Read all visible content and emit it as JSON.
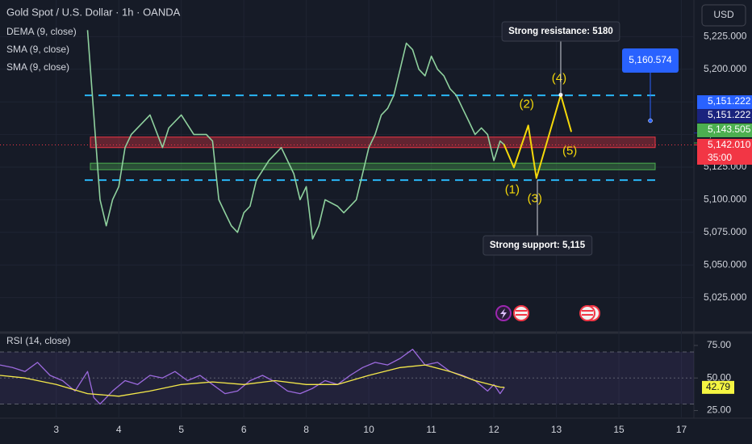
{
  "chart_data": [
    {
      "type": "line",
      "title": "Gold Spot / U.S. Dollar · 1h · OANDA",
      "currency": "USD",
      "indicators": [
        "DEMA (9, close)",
        "SMA (9, close)",
        "SMA (9, close)"
      ],
      "x": [
        1.5,
        1.7,
        1.8,
        1.9,
        2.0,
        2.1,
        2.2,
        2.4,
        2.5,
        2.7,
        2.8,
        3.0,
        3.2,
        3.4,
        3.5,
        3.6,
        3.7,
        3.8,
        3.9,
        4.0,
        4.1,
        4.2,
        4.4,
        4.6,
        4.8,
        4.9,
        5.0,
        5.1,
        5.2,
        5.3,
        5.5,
        5.6,
        5.8,
        5.9,
        6.0,
        6.1,
        6.2,
        6.3,
        6.4,
        6.5,
        6.6,
        6.7,
        6.8,
        6.9,
        7.0,
        7.1,
        7.2,
        7.3,
        7.4,
        7.5,
        7.6,
        7.7,
        7.8,
        7.9,
        8.0,
        8.1,
        8.17
      ],
      "series": [
        {
          "color": "#8fd19e",
          "values": [
            5230,
            5100,
            5080,
            5100,
            5110,
            5140,
            5150,
            5160,
            5165,
            5140,
            5155,
            5165,
            5150,
            5150,
            5145,
            5100,
            5090,
            5080,
            5075,
            5090,
            5095,
            5115,
            5130,
            5140,
            5120,
            5100,
            5110,
            5070,
            5080,
            5100,
            5095,
            5090,
            5100,
            5120,
            5140,
            5150,
            5165,
            5170,
            5180,
            5200,
            5220,
            5215,
            5200,
            5195,
            5210,
            5200,
            5195,
            5185,
            5180,
            5170,
            5160,
            5150,
            5155,
            5150,
            5130,
            5145,
            5142
          ]
        }
      ],
      "xlim": [
        0.1,
        11.2
      ],
      "xticks": [
        {
          "value": 1,
          "label": "3"
        },
        {
          "value": 2,
          "label": "4"
        },
        {
          "value": 3,
          "label": "5"
        },
        {
          "value": 4,
          "label": "6"
        },
        {
          "value": 5,
          "label": "8"
        },
        {
          "value": 6,
          "label": "10"
        },
        {
          "value": 7,
          "label": "11"
        },
        {
          "value": 8,
          "label": "12"
        },
        {
          "value": 9,
          "label": "13"
        },
        {
          "value": 10,
          "label": "15"
        },
        {
          "value": 11,
          "label": "17"
        }
      ],
      "ylim": [
        5000,
        5250
      ],
      "yticks": [
        {
          "value": 5025,
          "label": "5,025.000"
        },
        {
          "value": 5050,
          "label": "5,050.000"
        },
        {
          "value": 5075,
          "label": "5,075.000"
        },
        {
          "value": 5100,
          "label": "5,100.000"
        },
        {
          "value": 5125,
          "label": "5,125.000"
        },
        {
          "value": 5150,
          "label": "5,150.000"
        },
        {
          "value": 5175,
          "label": "5,175.000"
        },
        {
          "value": 5200,
          "label": "5,200.000"
        },
        {
          "value": 5225,
          "label": "5,225.000"
        }
      ],
      "resistance": {
        "value": 5180,
        "label": "Strong resistance: 5180"
      },
      "support": {
        "value": 5115,
        "label": "Strong support: 5,115"
      },
      "red_zone": [
        5140,
        5148
      ],
      "green_zone": [
        5123,
        5128
      ],
      "target": {
        "value": 5160.574,
        "label": "5,160.574"
      },
      "last_price": 5142.01,
      "wave": {
        "x": [
          8.16,
          8.32,
          8.55,
          8.68,
          9.07,
          9.24
        ],
        "values": [
          5142.6,
          5124.7,
          5156.9,
          5116.6,
          5180.4,
          5152
        ],
        "labels": [
          "(1)",
          "(2)",
          "(3)",
          "(4)",
          "(5)"
        ],
        "color": "#f5d90a"
      },
      "price_labels": [
        {
          "value": 5151.222,
          "label": "5,151.222",
          "color": "#2962ff"
        },
        {
          "value": 5151.222,
          "label": "5,151.222",
          "color": "#1a237e"
        },
        {
          "value": 5143.505,
          "label": "5,143.505",
          "color": "#4caf50"
        },
        {
          "value": 5142.01,
          "label": "5,142.010",
          "color": "#f23645"
        }
      ],
      "countdown": "35:00"
    },
    {
      "type": "line",
      "title": "RSI (14, close)",
      "series": [
        {
          "color": "#9c6ade",
          "x": [
            0.1,
            0.3,
            0.5,
            0.7,
            0.9,
            1.1,
            1.3,
            1.5,
            1.6,
            1.7,
            1.9,
            2.1,
            2.3,
            2.5,
            2.7,
            2.9,
            3.1,
            3.3,
            3.5,
            3.7,
            3.9,
            4.1,
            4.3,
            4.5,
            4.7,
            4.9,
            5.1,
            5.3,
            5.5,
            5.7,
            5.9,
            6.1,
            6.3,
            6.5,
            6.7,
            6.9,
            7.1,
            7.3,
            7.5,
            7.7,
            7.9,
            8.0,
            8.1,
            8.17
          ],
          "values": [
            60,
            58,
            55,
            62,
            52,
            48,
            40,
            55,
            35,
            30,
            40,
            48,
            45,
            52,
            50,
            55,
            48,
            52,
            45,
            38,
            40,
            48,
            52,
            47,
            40,
            38,
            42,
            48,
            45,
            52,
            58,
            62,
            60,
            65,
            72,
            60,
            62,
            55,
            52,
            48,
            40,
            45,
            38,
            42.79
          ]
        },
        {
          "color": "#f5e94a",
          "x": [
            0.1,
            0.5,
            1.0,
            1.5,
            2.0,
            2.5,
            3.0,
            3.5,
            4.0,
            4.5,
            5.0,
            5.5,
            6.0,
            6.5,
            6.9,
            7.3,
            7.7,
            8.1,
            8.17
          ],
          "values": [
            52,
            50,
            45,
            38,
            36,
            40,
            45,
            47,
            45,
            48,
            45,
            45,
            52,
            58,
            60,
            55,
            48,
            43,
            42.8
          ]
        }
      ],
      "ylim": [
        21,
        83
      ],
      "yticks": [
        {
          "value": 25,
          "label": "25.00"
        },
        {
          "value": 50,
          "label": "50.00"
        },
        {
          "value": 75,
          "label": "75.00"
        }
      ],
      "bands": [
        30,
        50,
        70
      ],
      "last_value": {
        "value": 42.79,
        "label": "42.79"
      }
    }
  ]
}
